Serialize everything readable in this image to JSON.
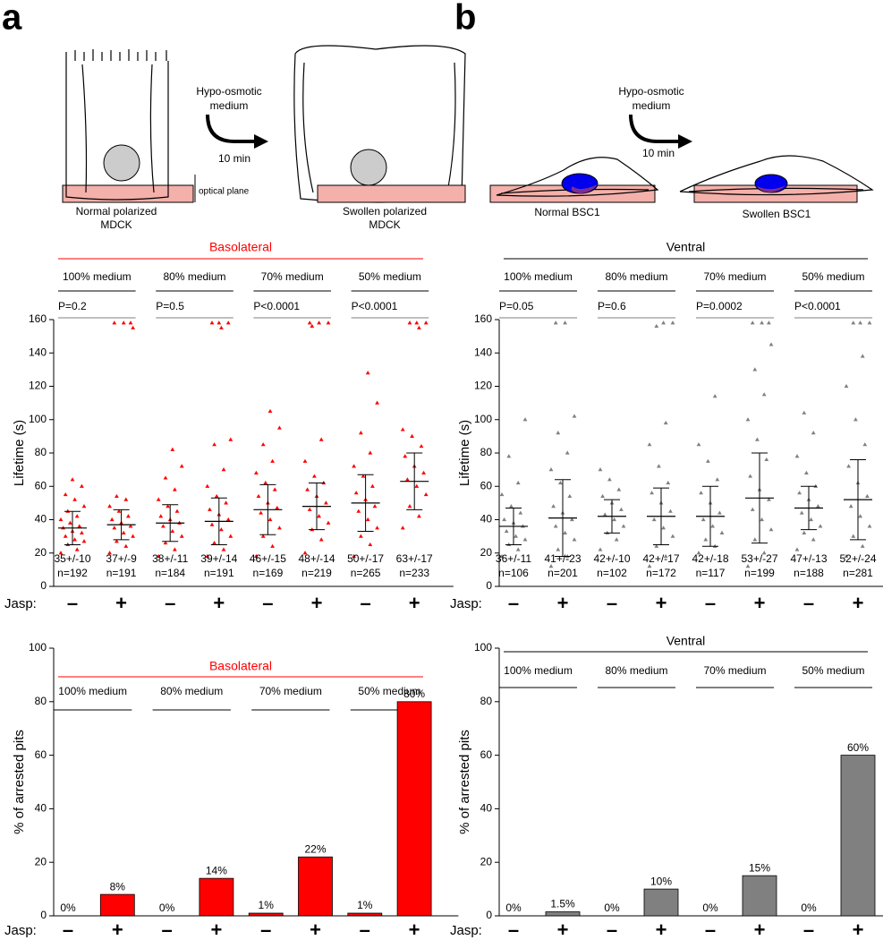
{
  "figure": {
    "panel_labels": [
      "a",
      "b"
    ],
    "diagram_a": {
      "treatment": [
        "Hypo-osmotic",
        "medium"
      ],
      "time": "10 min",
      "before": [
        "Normal polarized",
        "MDCK"
      ],
      "after": [
        "Swollen polarized",
        "MDCK"
      ],
      "plane": "optical plane"
    },
    "diagram_b": {
      "treatment": [
        "Hypo-osmotic",
        "medium"
      ],
      "time": "10 min",
      "before": "Normal BSC1",
      "after": "Swollen BSC1"
    }
  },
  "chart_data": [
    {
      "type": "scatter",
      "title": "Basolateral",
      "color": "#ff0000",
      "conditions": [
        "100% medium",
        "80% medium",
        "70% medium",
        "50% medium"
      ],
      "pvalues": [
        "P=0.2",
        "P=0.5",
        "P<0.0001",
        "P<0.0001"
      ],
      "x_label": "Jasp:",
      "categories": [
        "–",
        "+",
        "–",
        "+",
        "–",
        "+",
        "–",
        "+"
      ],
      "y_label": "Lifetime (s)",
      "ylim": [
        0,
        160
      ],
      "yticks": [
        0,
        20,
        40,
        60,
        80,
        100,
        120,
        140,
        160
      ],
      "means": [
        35,
        37,
        38,
        39,
        46,
        48,
        50,
        63
      ],
      "sds": [
        10,
        9,
        11,
        14,
        15,
        14,
        17,
        17
      ],
      "value_labels": [
        "35+/-10",
        "37+/-9",
        "38+/-11",
        "39+/-14",
        "46+/-15",
        "48+/-14",
        "50+/-17",
        "63+/-17"
      ],
      "n_labels": [
        "n=192",
        "n=191",
        "n=184",
        "n=191",
        "n=169",
        "n=219",
        "n=265",
        "n=233"
      ],
      "points": [
        [
          20,
          22,
          25,
          27,
          28,
          30,
          32,
          33,
          35,
          36,
          38,
          40,
          42,
          45,
          48,
          52,
          55,
          60,
          64
        ],
        [
          20,
          24,
          27,
          30,
          32,
          35,
          36,
          38,
          40,
          42,
          45,
          48,
          52,
          54,
          155,
          158,
          158,
          158
        ],
        [
          18,
          22,
          26,
          30,
          33,
          36,
          38,
          40,
          42,
          45,
          48,
          52,
          58,
          65,
          72,
          82
        ],
        [
          18,
          22,
          26,
          30,
          34,
          37,
          40,
          43,
          46,
          50,
          54,
          60,
          70,
          85,
          88,
          155,
          158,
          158,
          158
        ],
        [
          18,
          24,
          30,
          35,
          40,
          44,
          47,
          50,
          54,
          58,
          62,
          68,
          75,
          85,
          95,
          105
        ],
        [
          20,
          28,
          34,
          38,
          42,
          46,
          50,
          54,
          58,
          62,
          66,
          75,
          88,
          156,
          158,
          158,
          158
        ],
        [
          18,
          25,
          30,
          35,
          40,
          45,
          48,
          52,
          56,
          60,
          66,
          72,
          80,
          92,
          110,
          128
        ],
        [
          35,
          42,
          48,
          55,
          60,
          64,
          68,
          72,
          78,
          84,
          90,
          94,
          155,
          158,
          158,
          158
        ]
      ]
    },
    {
      "type": "scatter",
      "title": "Ventral",
      "color": "#808080",
      "conditions": [
        "100% medium",
        "80% medium",
        "70% medium",
        "50% medium"
      ],
      "pvalues": [
        "P=0.05",
        "P=0.6",
        "P=0.0002",
        "P<0.0001"
      ],
      "x_label": "Jasp:",
      "categories": [
        "–",
        "+",
        "–",
        "+",
        "–",
        "+",
        "–",
        "+"
      ],
      "y_label": "Lifetime (s)",
      "ylim": [
        0,
        160
      ],
      "yticks": [
        0,
        20,
        40,
        60,
        80,
        100,
        120,
        140,
        160
      ],
      "means": [
        36,
        41,
        42,
        42,
        42,
        53,
        47,
        52
      ],
      "sds": [
        11,
        23,
        10,
        17,
        18,
        27,
        13,
        24
      ],
      "value_labels": [
        "36+/-11",
        "41+/-23",
        "42+/-10",
        "42+/-17",
        "42+/-18",
        "53+/-27",
        "47+/-13",
        "52+/-24"
      ],
      "n_labels": [
        "n=106",
        "n=201",
        "n=102",
        "n=172",
        "n=117",
        "n=199",
        "n=188",
        "n=281"
      ],
      "points": [
        [
          18,
          22,
          25,
          28,
          30,
          33,
          36,
          38,
          40,
          44,
          48,
          55,
          62,
          78,
          100
        ],
        [
          12,
          18,
          22,
          28,
          32,
          36,
          40,
          44,
          48,
          54,
          62,
          70,
          80,
          92,
          102,
          158,
          158
        ],
        [
          22,
          28,
          32,
          36,
          40,
          43,
          46,
          50,
          54,
          58,
          64,
          70
        ],
        [
          12,
          18,
          24,
          30,
          35,
          40,
          45,
          50,
          56,
          62,
          72,
          85,
          98,
          156,
          158,
          158
        ],
        [
          20,
          24,
          28,
          32,
          36,
          40,
          44,
          50,
          56,
          64,
          75,
          85,
          114
        ],
        [
          12,
          20,
          28,
          34,
          40,
          46,
          52,
          58,
          66,
          76,
          88,
          100,
          115,
          130,
          145,
          158,
          158,
          158
        ],
        [
          22,
          28,
          32,
          36,
          40,
          44,
          48,
          52,
          56,
          60,
          68,
          78,
          92,
          104
        ],
        [
          18,
          24,
          30,
          36,
          42,
          48,
          54,
          62,
          72,
          85,
          100,
          120,
          138,
          158,
          158,
          158
        ]
      ]
    },
    {
      "type": "bar",
      "title": "Basolateral",
      "color": "#ff0000",
      "conditions": [
        "100% medium",
        "80% medium",
        "70% medium",
        "50% medium"
      ],
      "x_label": "Jasp:",
      "categories": [
        "–",
        "+",
        "–",
        "+",
        "–",
        "+",
        "–",
        "+"
      ],
      "y_label": "% of arrested pits",
      "ylim": [
        0,
        100
      ],
      "yticks": [
        0,
        20,
        40,
        60,
        80,
        100
      ],
      "values": [
        0,
        8,
        0,
        14,
        1,
        22,
        1,
        80
      ],
      "value_labels": [
        "0%",
        "8%",
        "0%",
        "14%",
        "1%",
        "22%",
        "1%",
        "80%"
      ]
    },
    {
      "type": "bar",
      "title": "Ventral",
      "color": "#808080",
      "conditions": [
        "100% medium",
        "80% medium",
        "70% medium",
        "50% medium"
      ],
      "x_label": "Jasp:",
      "categories": [
        "–",
        "+",
        "–",
        "+",
        "–",
        "+",
        "–",
        "+"
      ],
      "y_label": "% of arrested pits",
      "ylim": [
        0,
        100
      ],
      "yticks": [
        0,
        20,
        40,
        60,
        80,
        100
      ],
      "values": [
        0,
        1.5,
        0,
        10,
        0,
        15,
        0,
        60
      ],
      "value_labels": [
        "0%",
        "1.5%",
        "0%",
        "10%",
        "0%",
        "15%",
        "0%",
        "60%"
      ]
    }
  ]
}
